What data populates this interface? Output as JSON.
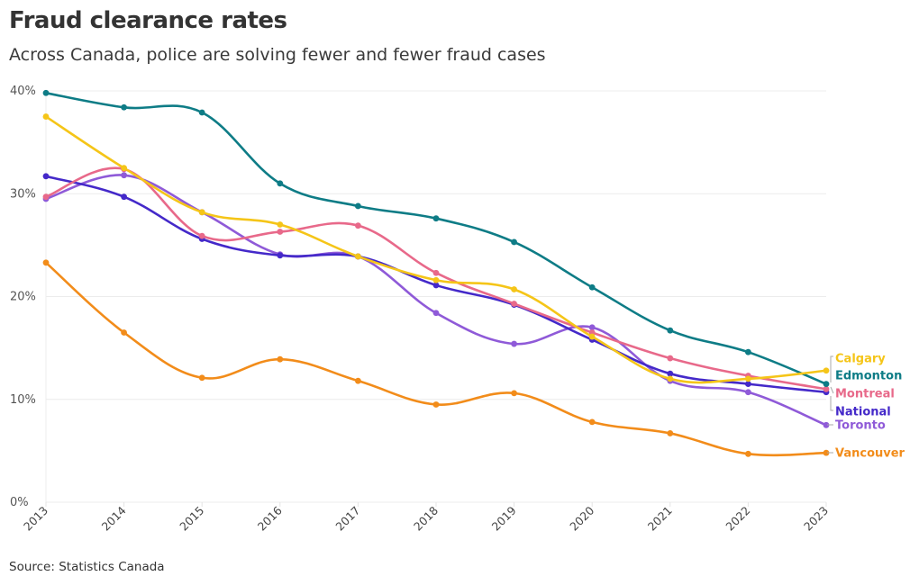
{
  "chart_data": {
    "type": "line",
    "title": "Fraud clearance rates",
    "subtitle": "Across Canada, police are solving fewer and fewer fraud cases",
    "source": "Source: Statistics Canada",
    "xlabel": "",
    "ylabel": "",
    "ylim": [
      0,
      40
    ],
    "yticks": [
      0,
      10,
      20,
      30,
      40
    ],
    "ytick_labels": [
      "0%",
      "10%",
      "20%",
      "30%",
      "40%"
    ],
    "x": [
      "2013",
      "2014",
      "2015",
      "2016",
      "2017",
      "2018",
      "2019",
      "2020",
      "2021",
      "2022",
      "2023"
    ],
    "grid": true,
    "legend": "right end labels",
    "series": [
      {
        "name": "Calgary",
        "color": "#f5c518",
        "values": [
          37.5,
          32.5,
          28.2,
          27.0,
          23.9,
          21.6,
          20.7,
          16.1,
          12.0,
          12.0,
          12.8
        ]
      },
      {
        "name": "Edmonton",
        "color": "#0e7c86",
        "values": [
          39.8,
          38.4,
          37.9,
          31.0,
          28.8,
          27.6,
          25.3,
          20.9,
          16.7,
          14.6,
          11.5
        ]
      },
      {
        "name": "Montreal",
        "color": "#e8698a",
        "values": [
          29.7,
          32.4,
          25.9,
          26.3,
          26.9,
          22.3,
          19.3,
          16.5,
          14.0,
          12.3,
          11.0
        ]
      },
      {
        "name": "National",
        "color": "#4429c9",
        "values": [
          31.7,
          29.7,
          25.6,
          24.0,
          23.9,
          21.1,
          19.2,
          15.8,
          12.5,
          11.5,
          10.7
        ]
      },
      {
        "name": "Toronto",
        "color": "#8f5ad8",
        "values": [
          29.5,
          31.8,
          28.2,
          24.1,
          23.9,
          18.4,
          15.4,
          17.0,
          11.8,
          10.7,
          7.5
        ]
      },
      {
        "name": "Vancouver",
        "color": "#f28c1a",
        "values": [
          23.3,
          16.5,
          12.1,
          13.9,
          11.8,
          9.5,
          10.6,
          7.8,
          6.7,
          4.7,
          4.8
        ]
      }
    ],
    "end_labels": [
      "Calgary",
      "Edmonton",
      "Montreal",
      "National",
      "Toronto",
      "Vancouver"
    ]
  }
}
